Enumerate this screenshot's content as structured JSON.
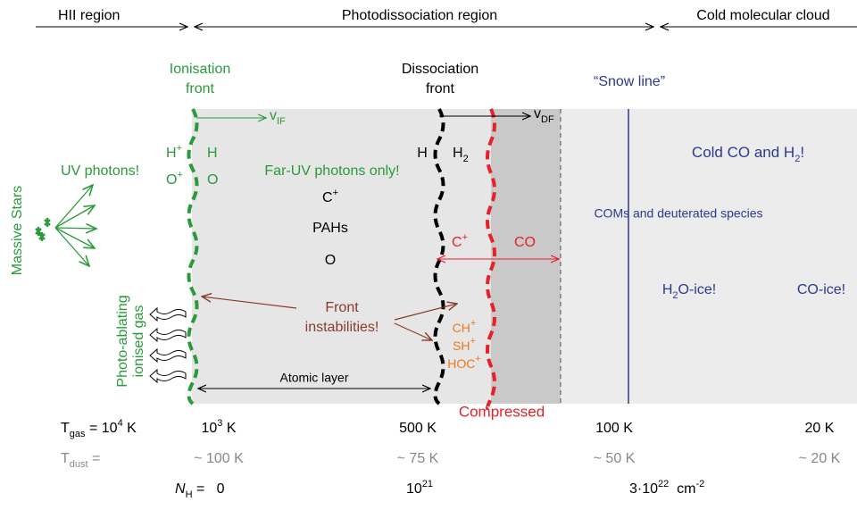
{
  "regions": {
    "hii": "HII region",
    "pdr": "Photodissociation region",
    "cold": "Cold molecular cloud"
  },
  "fronts": {
    "ionisation": [
      "Ionisation",
      "front"
    ],
    "dissociation": [
      "Dissociation",
      "front"
    ],
    "snow_line": "“Snow line”"
  },
  "velocities": {
    "ionisation": [
      "v",
      "IF"
    ],
    "dissociation": [
      "v",
      "DF"
    ]
  },
  "hii_species": {
    "h_ion": [
      "H",
      "+"
    ],
    "o_ion": [
      "O",
      "+"
    ]
  },
  "atomic_species": [
    "H",
    "O"
  ],
  "uv_photons": "UV photons!",
  "massive_stars": "Massive Stars",
  "far_uv": "Far-UV photons only!",
  "atomic_layer_species": [
    [
      "C",
      "+"
    ],
    "PAHs",
    "O"
  ],
  "dissociation_species": [
    "H",
    [
      "H",
      "2"
    ]
  ],
  "carbon": {
    "c_ion": [
      "C",
      "+"
    ],
    "co": "CO"
  },
  "cold": {
    "co_h2": [
      "Cold CO and H",
      "2",
      "!"
    ],
    "coms": "COMs and deuterated species",
    "h2o_ice": [
      "H",
      "2",
      "O-ice!"
    ],
    "co_ice": "CO-ice!"
  },
  "front_instabilities": [
    "Front",
    "instabilities!"
  ],
  "ions": [
    [
      "CH",
      "+"
    ],
    [
      "SH",
      "+"
    ],
    [
      "HOC",
      "+"
    ]
  ],
  "photo_ablating": [
    "Photo-ablating",
    "ionised gas"
  ],
  "atomic_layer": "Atomic layer",
  "compressed": "Compressed",
  "gas_temperature": {
    "label": [
      "T",
      "gas",
      " = 10",
      "4",
      " K"
    ],
    "values": [
      [
        "10",
        "3",
        " K"
      ],
      "500 K",
      "100 K",
      "20 K"
    ]
  },
  "dust_temperature": {
    "label": [
      "T",
      "dust",
      " ="
    ],
    "values": [
      "~ 100 K",
      "~ 75 K",
      "~ 50 K",
      "~ 20 K"
    ]
  },
  "column_density": {
    "label": [
      "N",
      "H",
      " =   0"
    ],
    "values": [
      [
        "10",
        "21"
      ],
      [
        "3·10",
        "22",
        "  cm",
        "-2"
      ]
    ]
  }
}
